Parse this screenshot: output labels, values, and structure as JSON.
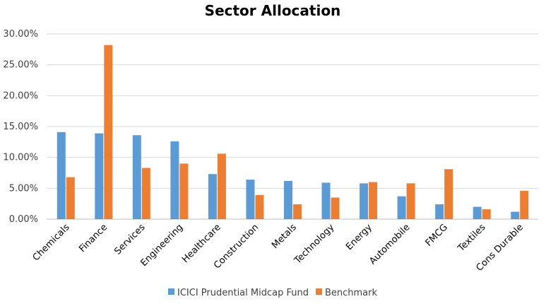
{
  "chart_data": {
    "type": "bar",
    "title": "Sector Allocation",
    "xlabel": "",
    "ylabel": "",
    "ylim": [
      0,
      0.3
    ],
    "yticks": [
      "0.00%",
      "5.00%",
      "10.00%",
      "15.00%",
      "20.00%",
      "25.00%",
      "30.00%"
    ],
    "grid": true,
    "legend_position": "bottom",
    "categories": [
      "Chemicals",
      "Finance",
      "Services",
      "Engineering",
      "Healthcare",
      "Construction",
      "Metals",
      "Technology",
      "Energy",
      "Automobile",
      "FMCG",
      "Textiles",
      "Cons Durable"
    ],
    "series": [
      {
        "name": "ICICI Prudential Midcap Fund",
        "color": "#5b9bd5",
        "values": [
          0.141,
          0.139,
          0.136,
          0.126,
          0.073,
          0.064,
          0.062,
          0.059,
          0.058,
          0.037,
          0.024,
          0.02,
          0.012
        ]
      },
      {
        "name": "Benchmark",
        "color": "#ed7d31",
        "values": [
          0.068,
          0.282,
          0.083,
          0.09,
          0.106,
          0.039,
          0.024,
          0.035,
          0.06,
          0.058,
          0.081,
          0.016,
          0.046
        ]
      }
    ]
  }
}
